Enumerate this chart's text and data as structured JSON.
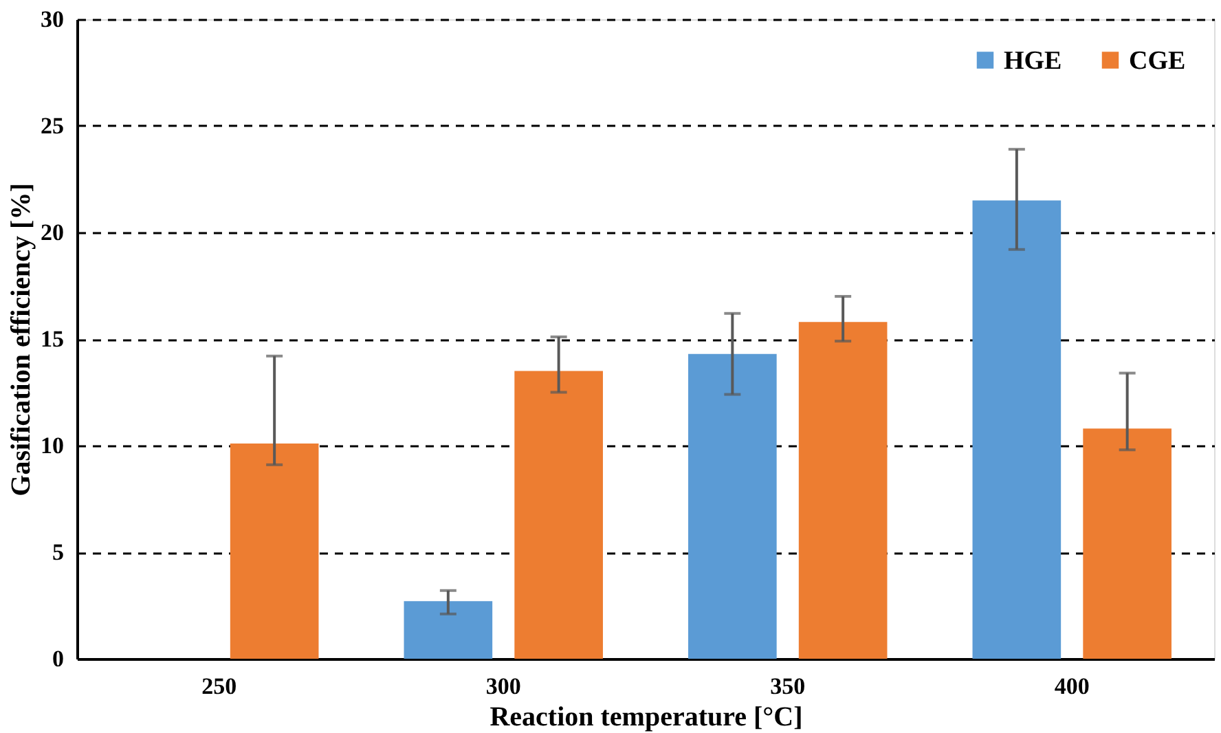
{
  "chart_data": {
    "type": "bar",
    "xlabel": "Reaction temperature [°C]",
    "ylabel": "Gasification efficiency [%]",
    "categories": [
      "250",
      "300",
      "350",
      "400"
    ],
    "series": [
      {
        "name": "HGE",
        "color": "#5b9bd5",
        "values": [
          null,
          2.7,
          14.3,
          21.5
        ],
        "errors": [
          null,
          [
            2.1,
            3.2
          ],
          [
            12.4,
            16.2
          ],
          [
            19.2,
            23.9
          ]
        ]
      },
      {
        "name": "CGE",
        "color": "#ed7d31",
        "values": [
          10.1,
          13.5,
          15.8,
          10.8
        ],
        "errors": [
          [
            9.1,
            14.2
          ],
          [
            12.5,
            15.1
          ],
          [
            14.9,
            17.0
          ],
          [
            9.8,
            13.4
          ]
        ]
      }
    ],
    "ylim": [
      0,
      30
    ],
    "yticks": [
      0,
      5,
      10,
      15,
      20,
      25,
      30
    ],
    "grid": "y",
    "legend": "top right"
  }
}
